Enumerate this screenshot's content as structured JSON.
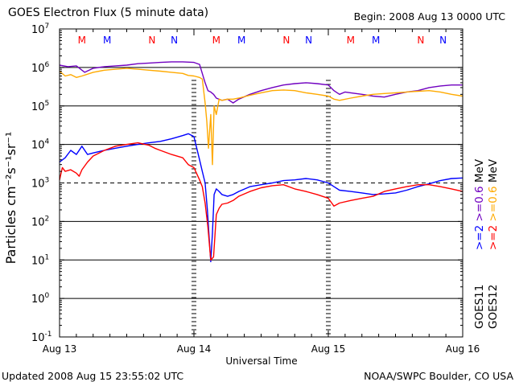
{
  "header": {
    "title": "GOES Electron Flux (5 minute data)",
    "begin": "Begin: 2008 Aug 13 0000 UTC"
  },
  "footer": {
    "updated": "Updated 2008 Aug 15 23:55:02 UTC",
    "credit": "NOAA/SWPC Boulder, CO USA"
  },
  "legend": {
    "goes11": "GOES11",
    "goes12": "GOES12",
    "goes11_ge2": ">=2",
    "goes11_ge06": ">=0.6",
    "goes11_unit": "MeV",
    "goes12_ge2": ">=2",
    "goes12_ge06": ">=0.6",
    "goes12_unit": "MeV"
  },
  "colors": {
    "goes11_ge2": "#0000ff",
    "goes11_ge06": "#7000c0",
    "goes12_ge2": "#ff0000",
    "goes12_ge06": "#ffaa00",
    "axis": "#000000"
  },
  "chart_data": {
    "type": "line",
    "title": "GOES Electron Flux (5 minute data)",
    "xlabel": "Universal Time",
    "ylabel": "Particles cm⁻²s⁻¹sr⁻¹",
    "yscale": "log",
    "ylim": [
      0.1,
      10000000
    ],
    "xlim": [
      0,
      72
    ],
    "x_unit": "hours since 2008 Aug 13 0000 UTC",
    "x_ticks": [
      {
        "x": 0,
        "label": "Aug 13"
      },
      {
        "x": 24,
        "label": "Aug 14"
      },
      {
        "x": 48,
        "label": "Aug 15"
      },
      {
        "x": 72,
        "label": "Aug 16"
      }
    ],
    "y_ticks": [
      {
        "exp": -1,
        "label": "10-1"
      },
      {
        "exp": 0,
        "label": "100"
      },
      {
        "exp": 1,
        "label": "101"
      },
      {
        "exp": 2,
        "label": "102"
      },
      {
        "exp": 3,
        "label": "103"
      },
      {
        "exp": 4,
        "label": "104"
      },
      {
        "exp": 5,
        "label": "105"
      },
      {
        "exp": 6,
        "label": "106"
      },
      {
        "exp": 7,
        "label": "107"
      }
    ],
    "threshold": {
      "value": 1000,
      "style": "dashed"
    },
    "grid": "horizontal at each decade",
    "day_markers": [
      24,
      48
    ],
    "local_time_markers": [
      {
        "x": 4,
        "label": "M",
        "satellite": "GOES12"
      },
      {
        "x": 8.5,
        "label": "M",
        "satellite": "GOES11"
      },
      {
        "x": 16.5,
        "label": "N",
        "satellite": "GOES12"
      },
      {
        "x": 20.5,
        "label": "N",
        "satellite": "GOES11"
      },
      {
        "x": 28,
        "label": "M",
        "satellite": "GOES12"
      },
      {
        "x": 32.5,
        "label": "M",
        "satellite": "GOES11"
      },
      {
        "x": 40.5,
        "label": "N",
        "satellite": "GOES12"
      },
      {
        "x": 44.5,
        "label": "N",
        "satellite": "GOES11"
      },
      {
        "x": 52,
        "label": "M",
        "satellite": "GOES12"
      },
      {
        "x": 56.5,
        "label": "M",
        "satellite": "GOES11"
      },
      {
        "x": 64.5,
        "label": "N",
        "satellite": "GOES12"
      },
      {
        "x": 68.5,
        "label": "N",
        "satellite": "GOES11"
      }
    ],
    "series": [
      {
        "name": "GOES11 >=0.6 MeV",
        "key": "goes11_ge06",
        "x": [
          0,
          1.5,
          3,
          4.5,
          6,
          8,
          10,
          12,
          14,
          16,
          18,
          20,
          22,
          24,
          25,
          26,
          26.5,
          27,
          27.5,
          28,
          29,
          30,
          31,
          32,
          34,
          36,
          38,
          40,
          42,
          44,
          46,
          48,
          49,
          50,
          51,
          52,
          54,
          56,
          58,
          60,
          62,
          64,
          66,
          68,
          70,
          72
        ],
        "y": [
          1150000,
          1050000,
          1100000,
          750000,
          950000,
          1050000,
          1100000,
          1150000,
          1250000,
          1300000,
          1350000,
          1400000,
          1400000,
          1350000,
          1200000,
          400000,
          250000,
          230000,
          200000,
          160000,
          140000,
          150000,
          120000,
          150000,
          200000,
          250000,
          300000,
          350000,
          380000,
          400000,
          380000,
          350000,
          250000,
          200000,
          230000,
          220000,
          200000,
          180000,
          170000,
          200000,
          230000,
          250000,
          300000,
          330000,
          350000,
          350000
        ]
      },
      {
        "name": "GOES12 >=0.6 MeV",
        "key": "goes12_ge06",
        "x": [
          0,
          1,
          2,
          3,
          4,
          6,
          8,
          10,
          12,
          14,
          16,
          18,
          20,
          22,
          23,
          24,
          25,
          25.5,
          26,
          26.3,
          26.6,
          27,
          27.3,
          27.6,
          28,
          28.5,
          29,
          30,
          31,
          32,
          34,
          36,
          38,
          40,
          42,
          44,
          46,
          48,
          49,
          50,
          52,
          54,
          56,
          58,
          60,
          62,
          64,
          66,
          68,
          70,
          72
        ],
        "y": [
          800000,
          600000,
          650000,
          550000,
          600000,
          750000,
          850000,
          900000,
          950000,
          900000,
          850000,
          800000,
          750000,
          700000,
          620000,
          600000,
          550000,
          500000,
          120000,
          40000,
          8000,
          60000,
          3000,
          100000,
          60000,
          150000,
          140000,
          150000,
          150000,
          160000,
          190000,
          220000,
          250000,
          260000,
          250000,
          220000,
          200000,
          180000,
          150000,
          140000,
          160000,
          180000,
          200000,
          210000,
          220000,
          230000,
          240000,
          250000,
          230000,
          200000,
          180000
        ]
      },
      {
        "name": "GOES11 >=2 MeV",
        "key": "goes11_ge2",
        "x": [
          0,
          1,
          2,
          3,
          4,
          5,
          6,
          8,
          10,
          12,
          14,
          16,
          18,
          20,
          22,
          23,
          24,
          25,
          25.5,
          26,
          26.4,
          26.8,
          27,
          27.3,
          27.6,
          28,
          28.5,
          29,
          30,
          31,
          32,
          34,
          36,
          38,
          40,
          42,
          44,
          46,
          48,
          49,
          50,
          52,
          54,
          56,
          58,
          60,
          62,
          64,
          66,
          68,
          70,
          72
        ],
        "y": [
          3500,
          4500,
          7000,
          5500,
          9000,
          5500,
          6000,
          7000,
          8000,
          9000,
          10000,
          11000,
          12000,
          14000,
          17000,
          19000,
          16000,
          4000,
          2000,
          1000,
          200,
          25,
          9,
          50,
          500,
          700,
          600,
          500,
          450,
          500,
          600,
          800,
          900,
          1000,
          1150,
          1200,
          1300,
          1200,
          1000,
          800,
          650,
          600,
          550,
          500,
          520,
          550,
          650,
          800,
          950,
          1150,
          1300,
          1350
        ]
      },
      {
        "name": "GOES12 >=2 MeV",
        "key": "goes12_ge2",
        "x": [
          0,
          0.5,
          1,
          2,
          3,
          3.5,
          4,
          5,
          6,
          8,
          10,
          12,
          14,
          16,
          17,
          18,
          20,
          22,
          23,
          24,
          25,
          25.5,
          26,
          26.5,
          27,
          27.5,
          28,
          28.5,
          29,
          30,
          31,
          32,
          34,
          36,
          38,
          40,
          42,
          44,
          46,
          48,
          49,
          50,
          52,
          54,
          56,
          58,
          60,
          62,
          64,
          66,
          68,
          70,
          72
        ],
        "y": [
          1200,
          2500,
          2000,
          2200,
          1800,
          1500,
          2200,
          3500,
          5000,
          7000,
          9000,
          10000,
          11000,
          9500,
          8000,
          7000,
          5500,
          4500,
          3000,
          2500,
          1200,
          800,
          300,
          70,
          10,
          12,
          150,
          220,
          280,
          300,
          350,
          450,
          600,
          750,
          850,
          900,
          700,
          600,
          500,
          400,
          250,
          300,
          350,
          400,
          450,
          600,
          700,
          800,
          900,
          900,
          800,
          700,
          600
        ]
      }
    ]
  }
}
